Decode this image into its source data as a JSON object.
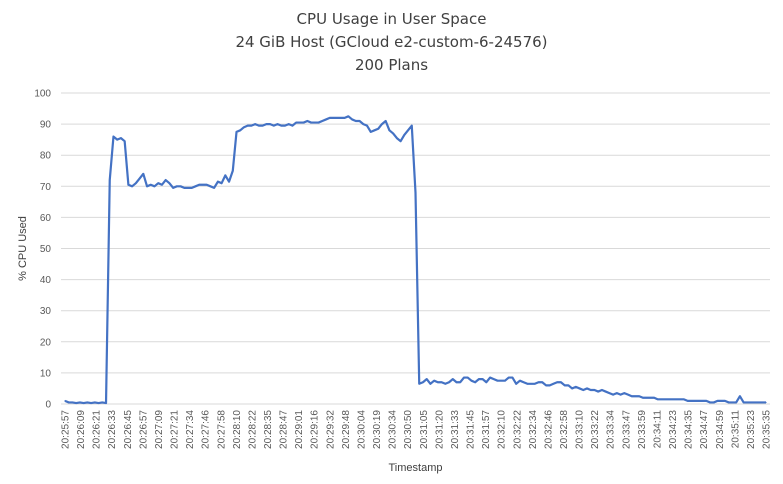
{
  "chart_data": {
    "type": "line",
    "title": "CPU Usage in User Space",
    "subtitle": "24 GiB Host (GCloud e2-custom-6-24576)",
    "subtitle2": "200 Plans",
    "xlabel": "Timestamp",
    "ylabel": "% CPU Used",
    "ylim": [
      0,
      100
    ],
    "yticks": [
      0,
      10,
      20,
      30,
      40,
      50,
      60,
      70,
      80,
      90,
      100
    ],
    "grid": true,
    "legend": "none",
    "line_color": "#4472C4",
    "grid_color": "#D9D9D9",
    "tick_labels": [
      "20:25:57",
      "20:26:09",
      "20:26:21",
      "20:26:33",
      "20:26:45",
      "20:26:57",
      "20:27:09",
      "20:27:21",
      "20:27:34",
      "20:27:46",
      "20:27:58",
      "20:28:10",
      "20:28:22",
      "20:28:35",
      "20:28:47",
      "20:29:01",
      "20:29:16",
      "20:29:32",
      "20:29:48",
      "20:30:04",
      "20:30:19",
      "20:30:34",
      "20:30:50",
      "20:31:05",
      "20:31:20",
      "20:31:33",
      "20:31:45",
      "20:31:57",
      "20:32:10",
      "20:32:22",
      "20:32:34",
      "20:32:46",
      "20:32:58",
      "20:33:10",
      "20:33:22",
      "20:33:34",
      "20:33:47",
      "20:33:59",
      "20:34:11",
      "20:34:23",
      "20:34:35",
      "20:34:47",
      "20:34:59",
      "20:35:11",
      "20:35:23",
      "20:35:35"
    ],
    "series": [
      {
        "values": [
          1,
          0.5,
          0.5,
          0.3,
          0.5,
          0.3,
          0.5,
          0.3,
          0.5,
          0.3,
          0.5,
          0.3,
          72,
          86,
          85,
          85.5,
          84.5,
          70.5,
          70,
          71,
          72.5,
          74,
          70,
          70.5,
          70,
          71,
          70.5,
          72,
          71,
          69.5,
          70,
          70,
          69.5,
          69.5,
          69.5,
          70,
          70.5,
          70.5,
          70.5,
          70,
          69.5,
          71.5,
          71,
          73.5,
          71.5,
          75,
          87.5,
          88,
          89,
          89.5,
          89.5,
          90,
          89.5,
          89.5,
          90,
          90,
          89.5,
          90,
          89.5,
          89.5,
          90,
          89.5,
          90.5,
          90.5,
          90.5,
          91,
          90.5,
          90.5,
          90.5,
          91,
          91.5,
          92,
          92,
          92,
          92,
          92,
          92.5,
          91.5,
          91,
          91,
          90,
          89.5,
          87.5,
          88,
          88.5,
          90,
          91,
          88,
          87,
          85.5,
          84.5,
          86.5,
          88,
          89.5,
          68,
          6.5,
          7,
          8,
          6.5,
          7.5,
          7,
          7,
          6.5,
          7,
          8,
          7,
          7,
          8.5,
          8.5,
          7.5,
          7,
          8,
          8,
          7,
          8.5,
          8,
          7.5,
          7.5,
          7.5,
          8.5,
          8.5,
          6.5,
          7.5,
          7,
          6.5,
          6.5,
          6.5,
          7,
          7,
          6,
          6,
          6.5,
          7,
          7,
          6,
          6,
          5,
          5.5,
          5,
          4.5,
          5,
          4.5,
          4.5,
          4,
          4.5,
          4,
          3.5,
          3,
          3.5,
          3,
          3.5,
          3,
          2.5,
          2.5,
          2.5,
          2,
          2,
          2,
          2,
          1.5,
          1.5,
          1.5,
          1.5,
          1.5,
          1.5,
          1.5,
          1.5,
          1,
          1,
          1,
          1,
          1,
          1,
          0.5,
          0.5,
          1,
          1,
          1,
          0.5,
          0.5,
          0.5,
          2.5,
          0.5,
          0.5,
          0.5,
          0.5,
          0.5,
          0.5,
          0.5
        ]
      }
    ]
  }
}
